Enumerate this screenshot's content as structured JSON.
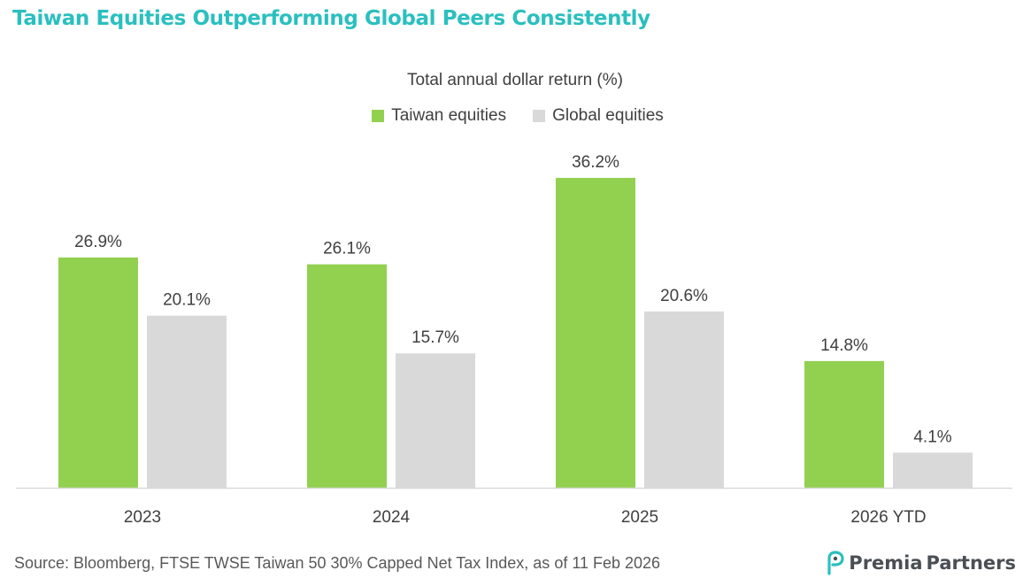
{
  "title": "Taiwan Equities Outperforming Global Peers Consistently",
  "colors": {
    "title": "#2bbfbf",
    "taiwan": "#92d050",
    "global": "#d9d9d9",
    "axis": "#d9d9d9",
    "text": "#404040"
  },
  "chart_data": {
    "type": "bar",
    "title": "",
    "subtitle": "Total annual dollar return (%)",
    "categories": [
      "2023",
      "2024",
      "2025",
      "2026 YTD"
    ],
    "series": [
      {
        "name": "Taiwan equities",
        "color": "#92d050",
        "values": [
          26.9,
          26.1,
          36.2,
          14.8
        ],
        "labels": [
          "26.9%",
          "26.1%",
          "36.2%",
          "14.8%"
        ]
      },
      {
        "name": "Global equities",
        "color": "#d9d9d9",
        "values": [
          20.1,
          15.7,
          20.6,
          4.1
        ],
        "labels": [
          "20.1%",
          "15.7%",
          "20.6%",
          "4.1%"
        ]
      }
    ],
    "xlabel": "",
    "ylabel": "",
    "ylim": [
      0,
      40
    ],
    "grid": false,
    "legend": "top-center"
  },
  "footer": {
    "source": "Source: Bloomberg, FTSE TWSE Taiwan 50 30% Capped Net Tax Index, as of 11 Feb 2026",
    "logo_text_a": "Premia",
    "logo_text_b": "Partners",
    "logo_icon": "premia-partners-logo-icon"
  }
}
